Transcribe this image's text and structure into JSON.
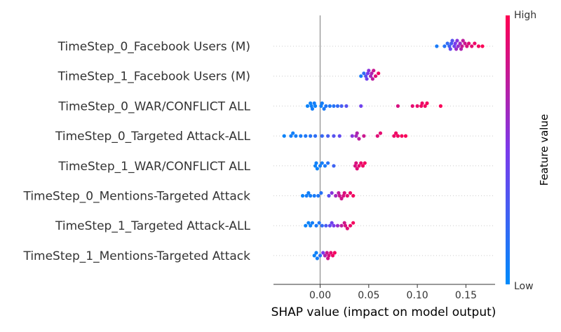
{
  "chart_data": {
    "type": "scatter",
    "subtype": "shap-beeswarm",
    "title": "",
    "xlabel": "SHAP value (impact on model output)",
    "ylabel": "",
    "xlim": [
      -0.048,
      0.18
    ],
    "xticks": [
      0.0,
      0.05,
      0.1,
      0.15
    ],
    "xtick_labels": [
      "0.00",
      "0.05",
      "0.10",
      "0.15"
    ],
    "zero_line": true,
    "grid": false,
    "colorbar": {
      "label": "Feature value",
      "high_label": "High",
      "low_label": "Low",
      "low_color": "#008bfb",
      "high_color": "#ff0052"
    },
    "features": [
      {
        "name": "TimeStep_0_Facebook Users (M)",
        "points": [
          {
            "shap": 0.12,
            "feature_value": 0.1
          },
          {
            "shap": 0.128,
            "feature_value": 0.15
          },
          {
            "shap": 0.131,
            "feature_value": 0.2
          },
          {
            "shap": 0.133,
            "feature_value": 0.25
          },
          {
            "shap": 0.135,
            "feature_value": 0.3
          },
          {
            "shap": 0.136,
            "feature_value": 0.35
          },
          {
            "shap": 0.138,
            "feature_value": 0.45
          },
          {
            "shap": 0.139,
            "feature_value": 0.5
          },
          {
            "shap": 0.141,
            "feature_value": 0.55
          },
          {
            "shap": 0.142,
            "feature_value": 0.6
          },
          {
            "shap": 0.144,
            "feature_value": 0.65
          },
          {
            "shap": 0.145,
            "feature_value": 0.7
          },
          {
            "shap": 0.147,
            "feature_value": 0.75
          },
          {
            "shap": 0.149,
            "feature_value": 0.8
          },
          {
            "shap": 0.151,
            "feature_value": 0.85
          },
          {
            "shap": 0.153,
            "feature_value": 0.88
          },
          {
            "shap": 0.156,
            "feature_value": 0.9
          },
          {
            "shap": 0.159,
            "feature_value": 0.93
          },
          {
            "shap": 0.163,
            "feature_value": 0.96
          },
          {
            "shap": 0.167,
            "feature_value": 0.99
          },
          {
            "shap": 0.134,
            "feature_value": 0.4
          },
          {
            "shap": 0.14,
            "feature_value": 0.62
          },
          {
            "shap": 0.146,
            "feature_value": 0.78
          }
        ]
      },
      {
        "name": "TimeStep_1_Facebook Users (M)",
        "points": [
          {
            "shap": 0.042,
            "feature_value": 0.1
          },
          {
            "shap": 0.045,
            "feature_value": 0.2
          },
          {
            "shap": 0.047,
            "feature_value": 0.35
          },
          {
            "shap": 0.048,
            "feature_value": 0.45
          },
          {
            "shap": 0.05,
            "feature_value": 0.55
          },
          {
            "shap": 0.052,
            "feature_value": 0.65
          },
          {
            "shap": 0.054,
            "feature_value": 0.75
          },
          {
            "shap": 0.055,
            "feature_value": 0.8
          },
          {
            "shap": 0.057,
            "feature_value": 0.88
          },
          {
            "shap": 0.06,
            "feature_value": 0.95
          },
          {
            "shap": 0.049,
            "feature_value": 0.5
          },
          {
            "shap": 0.053,
            "feature_value": 0.7
          }
        ]
      },
      {
        "name": "TimeStep_0_WAR/CONFLICT ALL",
        "points": [
          {
            "shap": -0.013,
            "feature_value": 0.05
          },
          {
            "shap": -0.01,
            "feature_value": 0.05
          },
          {
            "shap": -0.008,
            "feature_value": 0.08
          },
          {
            "shap": -0.006,
            "feature_value": 0.08
          },
          {
            "shap": -0.005,
            "feature_value": 0.05
          },
          {
            "shap": 0.002,
            "feature_value": 0.08
          },
          {
            "shap": 0.004,
            "feature_value": 0.1
          },
          {
            "shap": 0.006,
            "feature_value": 0.12
          },
          {
            "shap": 0.01,
            "feature_value": 0.12
          },
          {
            "shap": 0.014,
            "feature_value": 0.15
          },
          {
            "shap": 0.018,
            "feature_value": 0.2
          },
          {
            "shap": 0.022,
            "feature_value": 0.28
          },
          {
            "shap": 0.027,
            "feature_value": 0.35
          },
          {
            "shap": 0.042,
            "feature_value": 0.45
          },
          {
            "shap": 0.08,
            "feature_value": 0.85
          },
          {
            "shap": 0.095,
            "feature_value": 0.9
          },
          {
            "shap": 0.1,
            "feature_value": 0.92
          },
          {
            "shap": 0.104,
            "feature_value": 0.94
          },
          {
            "shap": 0.108,
            "feature_value": 0.95
          },
          {
            "shap": 0.11,
            "feature_value": 0.96
          },
          {
            "shap": 0.124,
            "feature_value": 0.98
          },
          {
            "shap": -0.009,
            "feature_value": 0.06
          },
          {
            "shap": 0.001,
            "feature_value": 0.07
          },
          {
            "shap": 0.105,
            "feature_value": 0.93
          }
        ]
      },
      {
        "name": "TimeStep_0_Targeted Attack-ALL",
        "points": [
          {
            "shap": -0.037,
            "feature_value": 0.05
          },
          {
            "shap": -0.03,
            "feature_value": 0.08
          },
          {
            "shap": -0.025,
            "feature_value": 0.08
          },
          {
            "shap": -0.02,
            "feature_value": 0.1
          },
          {
            "shap": -0.015,
            "feature_value": 0.12
          },
          {
            "shap": -0.01,
            "feature_value": 0.15
          },
          {
            "shap": -0.005,
            "feature_value": 0.18
          },
          {
            "shap": 0.002,
            "feature_value": 0.22
          },
          {
            "shap": 0.008,
            "feature_value": 0.28
          },
          {
            "shap": 0.014,
            "feature_value": 0.35
          },
          {
            "shap": 0.02,
            "feature_value": 0.4
          },
          {
            "shap": 0.033,
            "feature_value": 0.55
          },
          {
            "shap": 0.037,
            "feature_value": 0.65
          },
          {
            "shap": 0.04,
            "feature_value": 0.75
          },
          {
            "shap": 0.045,
            "feature_value": 0.8
          },
          {
            "shap": 0.059,
            "feature_value": 0.88
          },
          {
            "shap": 0.062,
            "feature_value": 0.9
          },
          {
            "shap": 0.076,
            "feature_value": 0.93
          },
          {
            "shap": 0.08,
            "feature_value": 0.95
          },
          {
            "shap": 0.084,
            "feature_value": 0.96
          },
          {
            "shap": 0.088,
            "feature_value": 0.98
          },
          {
            "shap": -0.028,
            "feature_value": 0.07
          },
          {
            "shap": 0.038,
            "feature_value": 0.7
          },
          {
            "shap": 0.078,
            "feature_value": 0.94
          }
        ]
      },
      {
        "name": "TimeStep_1_WAR/CONFLICT ALL",
        "points": [
          {
            "shap": -0.005,
            "feature_value": 0.05
          },
          {
            "shap": -0.003,
            "feature_value": 0.05
          },
          {
            "shap": 0.0,
            "feature_value": 0.08
          },
          {
            "shap": 0.002,
            "feature_value": 0.08
          },
          {
            "shap": 0.005,
            "feature_value": 0.1
          },
          {
            "shap": 0.008,
            "feature_value": 0.15
          },
          {
            "shap": 0.014,
            "feature_value": 0.25
          },
          {
            "shap": 0.036,
            "feature_value": 0.85
          },
          {
            "shap": 0.038,
            "feature_value": 0.88
          },
          {
            "shap": 0.04,
            "feature_value": 0.9
          },
          {
            "shap": 0.042,
            "feature_value": 0.92
          },
          {
            "shap": 0.044,
            "feature_value": 0.94
          },
          {
            "shap": 0.046,
            "feature_value": 0.96
          },
          {
            "shap": -0.004,
            "feature_value": 0.06
          },
          {
            "shap": 0.037,
            "feature_value": 0.86
          }
        ]
      },
      {
        "name": "TimeStep_0_Mentions-Targeted Attack",
        "points": [
          {
            "shap": -0.018,
            "feature_value": 0.05
          },
          {
            "shap": -0.014,
            "feature_value": 0.08
          },
          {
            "shap": -0.01,
            "feature_value": 0.08
          },
          {
            "shap": -0.006,
            "feature_value": 0.1
          },
          {
            "shap": -0.002,
            "feature_value": 0.12
          },
          {
            "shap": 0.001,
            "feature_value": 0.15
          },
          {
            "shap": 0.009,
            "feature_value": 0.35
          },
          {
            "shap": 0.012,
            "feature_value": 0.55
          },
          {
            "shap": 0.016,
            "feature_value": 0.65
          },
          {
            "shap": 0.019,
            "feature_value": 0.75
          },
          {
            "shap": 0.022,
            "feature_value": 0.82
          },
          {
            "shap": 0.025,
            "feature_value": 0.86
          },
          {
            "shap": 0.028,
            "feature_value": 0.9
          },
          {
            "shap": 0.031,
            "feature_value": 0.93
          },
          {
            "shap": 0.034,
            "feature_value": 0.96
          },
          {
            "shap": -0.012,
            "feature_value": 0.07
          },
          {
            "shap": 0.02,
            "feature_value": 0.8
          },
          {
            "shap": 0.024,
            "feature_value": 0.85
          }
        ]
      },
      {
        "name": "TimeStep_1_Targeted Attack-ALL",
        "points": [
          {
            "shap": -0.015,
            "feature_value": 0.05
          },
          {
            "shap": -0.012,
            "feature_value": 0.05
          },
          {
            "shap": -0.008,
            "feature_value": 0.08
          },
          {
            "shap": -0.004,
            "feature_value": 0.1
          },
          {
            "shap": -0.001,
            "feature_value": 0.12
          },
          {
            "shap": 0.002,
            "feature_value": 0.2
          },
          {
            "shap": 0.006,
            "feature_value": 0.3
          },
          {
            "shap": 0.01,
            "feature_value": 0.4
          },
          {
            "shap": 0.014,
            "feature_value": 0.5
          },
          {
            "shap": 0.018,
            "feature_value": 0.6
          },
          {
            "shap": 0.022,
            "feature_value": 0.75
          },
          {
            "shap": 0.025,
            "feature_value": 0.82
          },
          {
            "shap": 0.028,
            "feature_value": 0.88
          },
          {
            "shap": 0.031,
            "feature_value": 0.92
          },
          {
            "shap": 0.034,
            "feature_value": 0.96
          },
          {
            "shap": -0.01,
            "feature_value": 0.06
          },
          {
            "shap": 0.012,
            "feature_value": 0.45
          },
          {
            "shap": 0.026,
            "feature_value": 0.85
          }
        ]
      },
      {
        "name": "TimeStep_1_Mentions-Targeted Attack",
        "points": [
          {
            "shap": -0.006,
            "feature_value": 0.05
          },
          {
            "shap": -0.003,
            "feature_value": 0.08
          },
          {
            "shap": 0.0,
            "feature_value": 0.15
          },
          {
            "shap": 0.003,
            "feature_value": 0.5
          },
          {
            "shap": 0.005,
            "feature_value": 0.7
          },
          {
            "shap": 0.007,
            "feature_value": 0.8
          },
          {
            "shap": 0.009,
            "feature_value": 0.85
          },
          {
            "shap": 0.011,
            "feature_value": 0.9
          },
          {
            "shap": 0.013,
            "feature_value": 0.93
          },
          {
            "shap": 0.015,
            "feature_value": 0.96
          },
          {
            "shap": -0.004,
            "feature_value": 0.06
          },
          {
            "shap": 0.008,
            "feature_value": 0.82
          }
        ]
      }
    ]
  }
}
